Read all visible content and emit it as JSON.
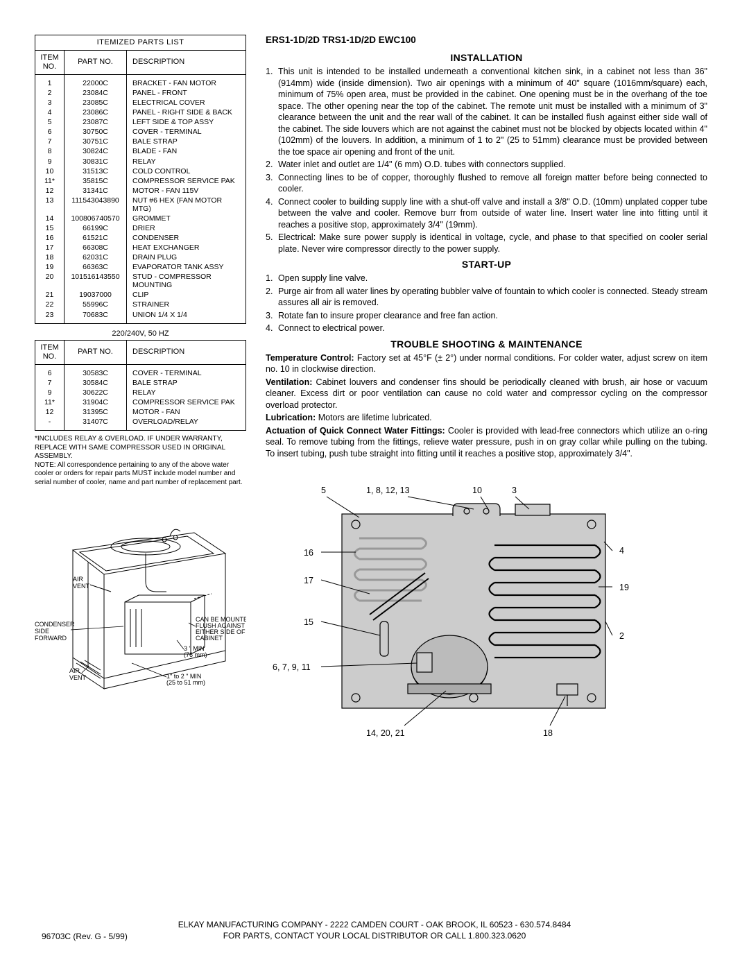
{
  "header": "ERS1-1D/2D  TRS1-1D/2D  EWC100",
  "table1": {
    "title": "ITEMIZED PARTS LIST",
    "headers": {
      "item": "ITEM\nNO.",
      "part": "PART  NO.",
      "desc": "DESCRIPTION"
    },
    "rows": [
      {
        "i": "1",
        "p": "22000C",
        "d": "BRACKET - FAN MOTOR"
      },
      {
        "i": "2",
        "p": "23084C",
        "d": "PANEL - FRONT"
      },
      {
        "i": "3",
        "p": "23085C",
        "d": "ELECTRICAL COVER"
      },
      {
        "i": "4",
        "p": "23086C",
        "d": "PANEL - RIGHT SIDE & BACK"
      },
      {
        "i": "5",
        "p": "23087C",
        "d": "LEFT SIDE & TOP ASSY"
      },
      {
        "i": "6",
        "p": "30750C",
        "d": "COVER - TERMINAL"
      },
      {
        "i": "7",
        "p": "30751C",
        "d": "BALE STRAP"
      },
      {
        "i": "8",
        "p": "30824C",
        "d": "BLADE - FAN"
      },
      {
        "i": "9",
        "p": "30831C",
        "d": "RELAY"
      },
      {
        "i": "10",
        "p": "31513C",
        "d": "COLD CONTROL"
      },
      {
        "i": "11*",
        "p": "35815C",
        "d": "COMPRESSOR SERVICE PAK"
      },
      {
        "i": "12",
        "p": "31341C",
        "d": "MOTOR - FAN 115V"
      },
      {
        "i": "13",
        "p": "111543043890",
        "d": "NUT #6 HEX (FAN MOTOR MTG)"
      },
      {
        "i": "14",
        "p": "100806740570",
        "d": "GROMMET"
      },
      {
        "i": "15",
        "p": "66199C",
        "d": "DRIER"
      },
      {
        "i": "16",
        "p": "61521C",
        "d": "CONDENSER"
      },
      {
        "i": "17",
        "p": "66308C",
        "d": "HEAT EXCHANGER"
      },
      {
        "i": "18",
        "p": "62031C",
        "d": "DRAIN PLUG"
      },
      {
        "i": "19",
        "p": "66363C",
        "d": "EVAPORATOR TANK ASSY"
      },
      {
        "i": "20",
        "p": "101516143550",
        "d": "STUD - COMPRESSOR MOUNTING"
      },
      {
        "i": "21",
        "p": "19037000",
        "d": "CLIP"
      },
      {
        "i": "22",
        "p": "55996C",
        "d": "STRAINER"
      },
      {
        "i": "23",
        "p": "70683C",
        "d": "UNION 1/4 X 1/4"
      }
    ]
  },
  "table2": {
    "caption": "220/240V, 50 HZ",
    "headers": {
      "item": "ITEM\nNO.",
      "part": "PART  NO.",
      "desc": "DESCRIPTION"
    },
    "rows": [
      {
        "i": "6",
        "p": "30583C",
        "d": "COVER - TERMINAL"
      },
      {
        "i": "7",
        "p": "30584C",
        "d": "BALE STRAP"
      },
      {
        "i": "9",
        "p": "30622C",
        "d": "RELAY"
      },
      {
        "i": "11*",
        "p": "31904C",
        "d": "COMPRESSOR SERVICE PAK"
      },
      {
        "i": "12",
        "p": "31395C",
        "d": "MOTOR - FAN"
      },
      {
        "i": "-",
        "p": "31407C",
        "d": "OVERLOAD/RELAY"
      }
    ]
  },
  "footnote": "*INCLUDES RELAY & OVERLOAD.  IF UNDER WARRANTY, REPLACE WITH SAME COMPRESSOR USED IN ORIGINAL ASSEMBLY.\nNOTE:  All correspondence pertaining to any of the above water cooler or orders for repair parts MUST include model number and serial number of cooler, name and part number of replacement part.",
  "sections": {
    "installation": {
      "title": "INSTALLATION",
      "items": [
        "This unit is intended to be installed underneath a conventional kitchen sink, in a cabinet not less than 36\" (914mm) wide (inside dimension). Two air openings with a minimum of 40\" square (1016mm/square) each, minimum of 75% open area, must be provided in the cabinet. One opening must be in the overhang of the toe space. The other opening near the top of the cabinet. The remote unit must be installed with a minimum of 3\" clearance between the unit and the rear wall of the cabinet. It can be installed flush against either side wall of the cabinet. The side louvers which are not against the cabinet must not be blocked by objects located within 4\" (102mm) of the louvers. In addition, a minimum of 1 to 2\" (25 to 51mm) clearance must be provided between the toe space air opening and front of the unit.",
        "Water inlet and outlet are 1/4\" (6 mm) O.D. tubes with connectors supplied.",
        "Connecting lines to be of copper, thoroughly flushed to remove all foreign matter before being connected to cooler.",
        "Connect cooler to building supply line with a shut-off valve and install a 3/8\" O.D. (10mm) unplated copper tube between the valve and cooler. Remove burr from outside of water line. Insert water line into fitting until it reaches a positive stop, approximately 3/4\" (19mm).",
        "Electrical: Make sure power supply is identical in voltage, cycle, and phase to that specified on cooler serial plate. Never wire compressor directly to the power supply."
      ]
    },
    "startup": {
      "title": "START-UP",
      "items": [
        "Open supply line valve.",
        "Purge air from all water lines by operating bubbler valve of fountain to which cooler is connected. Steady stream assures all air is removed.",
        "Rotate fan to insure proper clearance and free fan action.",
        "Connect to electrical power."
      ]
    },
    "trouble": {
      "title": "TROUBLE SHOOTING & MAINTENANCE",
      "blocks": [
        {
          "lbl": "Temperature Control:",
          "txt": " Factory set at 45°F (± 2°) under normal conditions. For colder water, adjust screw on item no. 10 in clockwise direction."
        },
        {
          "lbl": "Ventilation:",
          "txt": " Cabinet louvers and condenser fins should be periodically cleaned with brush, air hose or vacuum cleaner. Excess dirt or poor ventilation can cause no cold water and compressor cycling on the compressor overload protector."
        },
        {
          "lbl": "Lubrication:",
          "txt": " Motors are lifetime lubricated."
        },
        {
          "lbl": "Actuation of Quick Connect Water Fittings:",
          "txt": " Cooler is provided with lead-free connectors which utilize an o-ring seal. To remove tubing from the fittings, relieve water pressure, push in on gray collar while pulling on the tubing. To insert tubing, push tube straight into fitting until it reaches a positive stop, approximately 3/4\"."
        }
      ]
    }
  },
  "diagram_left": {
    "labels": {
      "air_vent_top": "AIR\nVENT",
      "condenser": "CONDENSER\nSIDE\nFORWARD",
      "air_vent_bottom": "AIR\nVENT",
      "mounted": "CAN BE MOUNTED\nFLUSH AGAINST\nEITHER SIDE OF\nCABINET",
      "min3": "3 \" MIN\n(76 mm)",
      "min12": "1\" to 2 \" MIN\n(25 to 51 mm)"
    }
  },
  "diagram_right": {
    "callouts": {
      "top1": "5",
      "top2": "1, 8, 12, 13",
      "top3": "10",
      "top4": "3",
      "left1": "16",
      "left2": "17",
      "left3": "15",
      "left4": "6, 7, 9, 11",
      "right1": "4",
      "right2": "19",
      "right3": "2",
      "bottom1": "14, 20, 21",
      "bottom2": "18"
    }
  },
  "footer": {
    "line1": "ELKAY MANUFACTURING COMPANY  -  2222 CAMDEN COURT -  OAK BROOK, IL 60523  -  630.574.8484",
    "line2": "FOR PARTS, CONTACT YOUR LOCAL DISTRIBUTOR OR CALL 1.800.323.0620",
    "rev": "96703C (Rev. G - 5/99)"
  }
}
